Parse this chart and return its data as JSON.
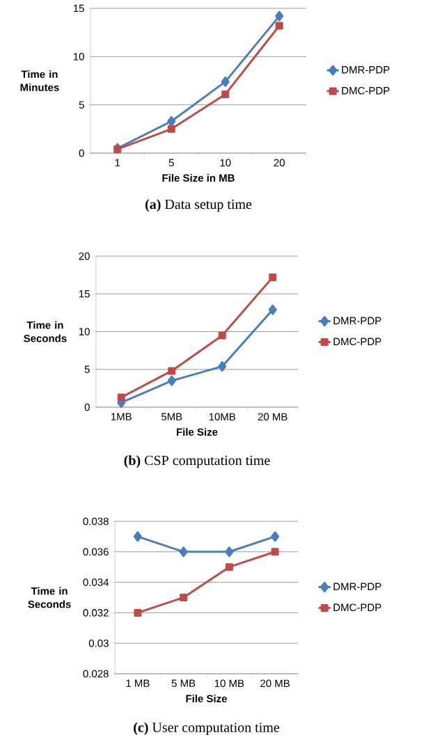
{
  "chart_data": [
    {
      "type": "line",
      "title": "**(a)** Data setup time",
      "xlabel": "File Size in MB",
      "ylabel": "Time in Minutes",
      "categories": [
        "1",
        "5",
        "10",
        "20"
      ],
      "ylim": [
        0,
        15
      ],
      "yticks": [
        0,
        5,
        10,
        15
      ],
      "grid": "y",
      "legend": "right",
      "line_style": "solid",
      "series": [
        {
          "name": "DMR-PDP",
          "color": "#4a7ebb",
          "marker": "diamond",
          "values": [
            0.5,
            3.3,
            7.4,
            14.2
          ]
        },
        {
          "name": "DMC-PDP",
          "color": "#be4b48",
          "marker": "square",
          "values": [
            0.4,
            2.5,
            6.1,
            13.2
          ]
        }
      ]
    },
    {
      "type": "line",
      "title": "**(b)** CSP computation time",
      "xlabel": "File Size",
      "ylabel": "Time in Seconds",
      "categories": [
        "1MB",
        "5MB",
        "10MB",
        "20 MB"
      ],
      "ylim": [
        0,
        20
      ],
      "yticks": [
        0,
        5,
        10,
        15,
        20
      ],
      "grid": "y",
      "legend": "right",
      "line_style": "solid",
      "series": [
        {
          "name": "DMR-PDP",
          "color": "#4a7ebb",
          "marker": "diamond",
          "values": [
            0.6,
            3.5,
            5.4,
            12.9
          ]
        },
        {
          "name": "DMC-PDP",
          "color": "#be4b48",
          "marker": "square",
          "values": [
            1.3,
            4.8,
            9.5,
            17.2
          ]
        }
      ]
    },
    {
      "type": "line",
      "title": "**(c)** User computation time",
      "xlabel": "File Size",
      "ylabel": "Time in Seconds",
      "categories": [
        "1 MB",
        "5 MB",
        "10 MB",
        "20 MB"
      ],
      "ylim": [
        0.028,
        0.038
      ],
      "yticks": [
        0.028,
        0.03,
        0.032,
        0.034,
        0.036,
        0.038
      ],
      "grid": "y",
      "legend": "right",
      "line_style": "solid",
      "series": [
        {
          "name": "DMR-PDP",
          "color": "#4a7ebb",
          "marker": "diamond",
          "values": [
            0.037,
            0.036,
            0.036,
            0.037
          ]
        },
        {
          "name": "DMC-PDP",
          "color": "#be4b48",
          "marker": "square",
          "values": [
            0.032,
            0.033,
            0.035,
            0.036
          ]
        }
      ]
    }
  ]
}
